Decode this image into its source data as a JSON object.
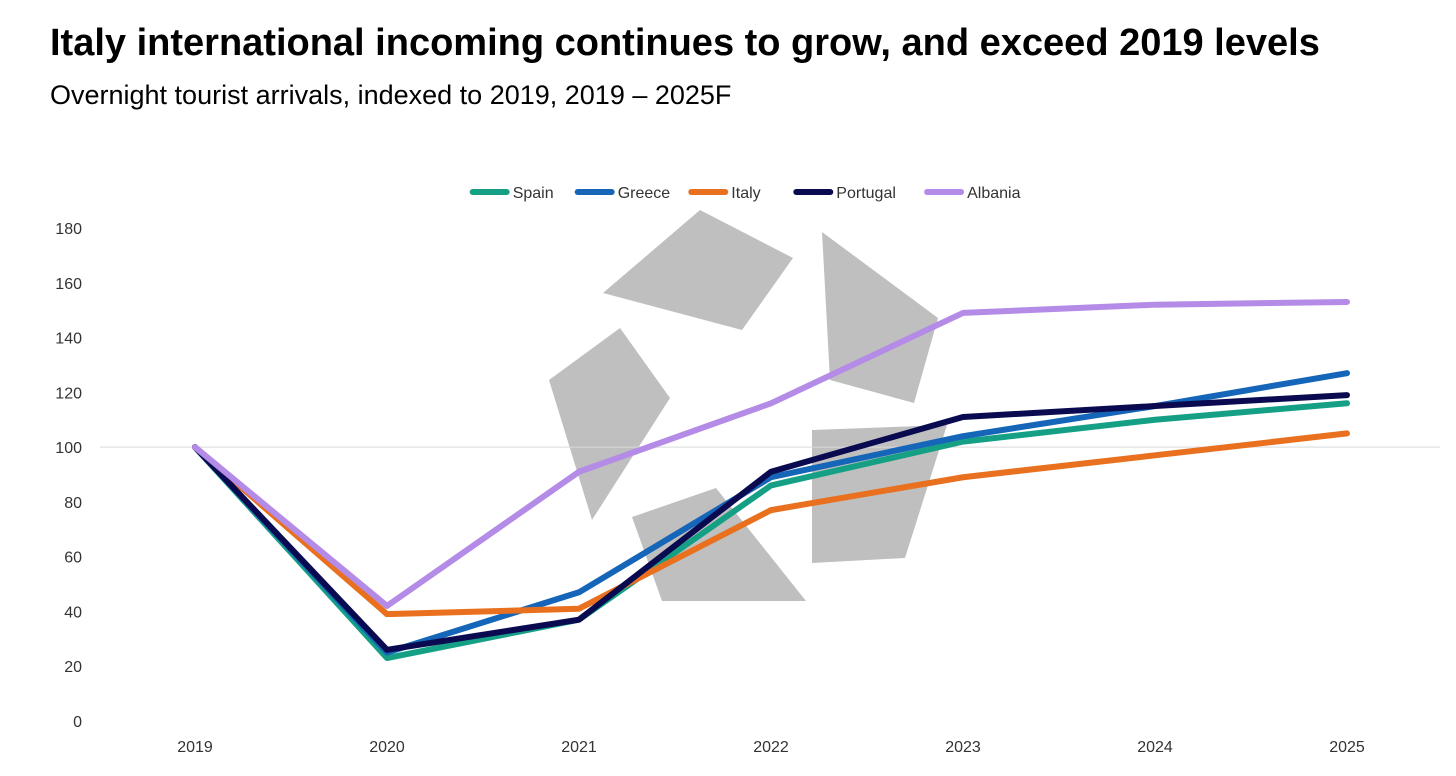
{
  "title": "Italy international incoming continues to grow, and exceed 2019 levels",
  "subtitle": "Overnight tourist arrivals, indexed to 2019, 2019 – 2025F",
  "chart_data": {
    "type": "line",
    "title": "Italy international incoming continues to grow, and exceed 2019 levels",
    "subtitle": "Overnight tourist arrivals, indexed to 2019, 2019 – 2025F",
    "categories": [
      "2019",
      "2020",
      "2021",
      "2022",
      "2023",
      "2024",
      "2025"
    ],
    "ylim": [
      0,
      180
    ],
    "yticks": [
      0,
      20,
      40,
      60,
      80,
      100,
      120,
      140,
      160,
      180
    ],
    "grid": "reference line at 100 only",
    "legend_position": "top-center",
    "series": [
      {
        "name": "Spain",
        "color": "#15A086",
        "values": [
          100,
          23,
          37,
          86,
          102,
          110,
          116
        ]
      },
      {
        "name": "Greece",
        "color": "#1565B8",
        "values": [
          100,
          25,
          47,
          89,
          104,
          115,
          127
        ]
      },
      {
        "name": "Italy",
        "color": "#E8701E",
        "values": [
          100,
          39,
          41,
          77,
          89,
          97,
          105
        ]
      },
      {
        "name": "Portugal",
        "color": "#0A0A50",
        "values": [
          100,
          26,
          37,
          91,
          111,
          115,
          119
        ]
      },
      {
        "name": "Albania",
        "color": "#B48BE6",
        "values": [
          100,
          42,
          91,
          116,
          149,
          152,
          153
        ]
      }
    ]
  },
  "watermark": {
    "color": "#BFBFBF",
    "icon": "recycle-logo"
  }
}
